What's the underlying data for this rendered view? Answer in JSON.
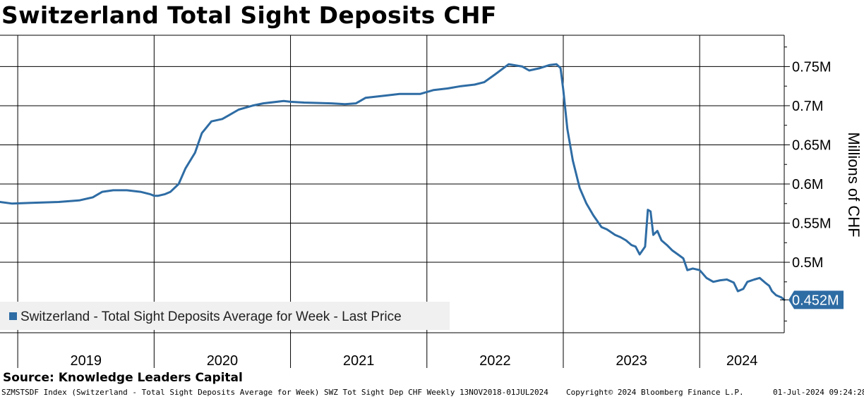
{
  "title": "Switzerland Total Sight Deposits CHF",
  "source": "Source: Knowledge Leaders Capital",
  "footer": {
    "left": "SZMSTSDF Index (Switzerland - Total Sight Deposits Average for Week) SWZ Tot Sight Dep CHF  Weekly 13NOV2018-01JUL2024",
    "copyright": "Copyright© 2024 Bloomberg Finance L.P.",
    "timestamp": "01-Jul-2024 09:24:28"
  },
  "colors": {
    "line": "#2e6ca4",
    "grid": "#000000",
    "legend_bg": "#f0f0f0",
    "last_label_bg": "#2e6ca4"
  },
  "chart_data": {
    "type": "line",
    "ylabel": "Millions of CHF",
    "ylim": [
      0.41,
      0.79
    ],
    "yticks": [
      0.5,
      0.55,
      0.6,
      0.65,
      0.7,
      0.75
    ],
    "ytick_labels": [
      "0.5M",
      "0.55M",
      "0.6M",
      "0.65M",
      "0.7M",
      "0.75M"
    ],
    "year_labels": [
      "2019",
      "2020",
      "2021",
      "2022",
      "2023",
      "2024"
    ],
    "xlim": [
      2018.87,
      2024.62
    ],
    "grid": true,
    "legend_position": "bottom-left",
    "series": [
      {
        "name": "Switzerland - Total Sight Deposits Average for Week - Last Price",
        "last_value_label": "0.452M",
        "points": [
          [
            2018.87,
            0.577
          ],
          [
            2018.96,
            0.575
          ],
          [
            2019.1,
            0.576
          ],
          [
            2019.3,
            0.577
          ],
          [
            2019.45,
            0.579
          ],
          [
            2019.55,
            0.583
          ],
          [
            2019.62,
            0.59
          ],
          [
            2019.7,
            0.592
          ],
          [
            2019.8,
            0.592
          ],
          [
            2019.9,
            0.59
          ],
          [
            2019.97,
            0.587
          ],
          [
            2020.0,
            0.585
          ],
          [
            2020.03,
            0.585
          ],
          [
            2020.08,
            0.587
          ],
          [
            2020.12,
            0.59
          ],
          [
            2020.18,
            0.6
          ],
          [
            2020.23,
            0.62
          ],
          [
            2020.3,
            0.64
          ],
          [
            2020.35,
            0.665
          ],
          [
            2020.42,
            0.68
          ],
          [
            2020.5,
            0.683
          ],
          [
            2020.55,
            0.688
          ],
          [
            2020.62,
            0.695
          ],
          [
            2020.72,
            0.7
          ],
          [
            2020.8,
            0.703
          ],
          [
            2020.95,
            0.706
          ],
          [
            2021.0,
            0.705
          ],
          [
            2021.1,
            0.704
          ],
          [
            2021.3,
            0.703
          ],
          [
            2021.4,
            0.702
          ],
          [
            2021.48,
            0.703
          ],
          [
            2021.55,
            0.71
          ],
          [
            2021.7,
            0.713
          ],
          [
            2021.8,
            0.715
          ],
          [
            2021.95,
            0.715
          ],
          [
            2022.05,
            0.72
          ],
          [
            2022.15,
            0.722
          ],
          [
            2022.25,
            0.725
          ],
          [
            2022.35,
            0.727
          ],
          [
            2022.42,
            0.73
          ],
          [
            2022.5,
            0.74
          ],
          [
            2022.6,
            0.753
          ],
          [
            2022.7,
            0.75
          ],
          [
            2022.75,
            0.745
          ],
          [
            2022.83,
            0.748
          ],
          [
            2022.9,
            0.752
          ],
          [
            2022.95,
            0.753
          ],
          [
            2022.98,
            0.748
          ],
          [
            2023.0,
            0.72
          ],
          [
            2023.03,
            0.67
          ],
          [
            2023.07,
            0.63
          ],
          [
            2023.12,
            0.595
          ],
          [
            2023.17,
            0.575
          ],
          [
            2023.22,
            0.56
          ],
          [
            2023.28,
            0.545
          ],
          [
            2023.32,
            0.542
          ],
          [
            2023.38,
            0.535
          ],
          [
            2023.42,
            0.532
          ],
          [
            2023.46,
            0.528
          ],
          [
            2023.5,
            0.522
          ],
          [
            2023.53,
            0.52
          ],
          [
            2023.56,
            0.51
          ],
          [
            2023.6,
            0.52
          ],
          [
            2023.62,
            0.567
          ],
          [
            2023.64,
            0.565
          ],
          [
            2023.66,
            0.535
          ],
          [
            2023.69,
            0.54
          ],
          [
            2023.72,
            0.528
          ],
          [
            2023.76,
            0.522
          ],
          [
            2023.8,
            0.515
          ],
          [
            2023.84,
            0.51
          ],
          [
            2023.88,
            0.505
          ],
          [
            2023.91,
            0.49
          ],
          [
            2023.95,
            0.492
          ],
          [
            2024.0,
            0.49
          ],
          [
            2024.05,
            0.48
          ],
          [
            2024.1,
            0.475
          ],
          [
            2024.15,
            0.477
          ],
          [
            2024.2,
            0.478
          ],
          [
            2024.25,
            0.474
          ],
          [
            2024.28,
            0.463
          ],
          [
            2024.32,
            0.466
          ],
          [
            2024.35,
            0.475
          ],
          [
            2024.4,
            0.478
          ],
          [
            2024.44,
            0.48
          ],
          [
            2024.48,
            0.474
          ],
          [
            2024.51,
            0.47
          ],
          [
            2024.53,
            0.463
          ],
          [
            2024.56,
            0.458
          ],
          [
            2024.6,
            0.455
          ],
          [
            2024.62,
            0.452
          ]
        ]
      }
    ]
  }
}
